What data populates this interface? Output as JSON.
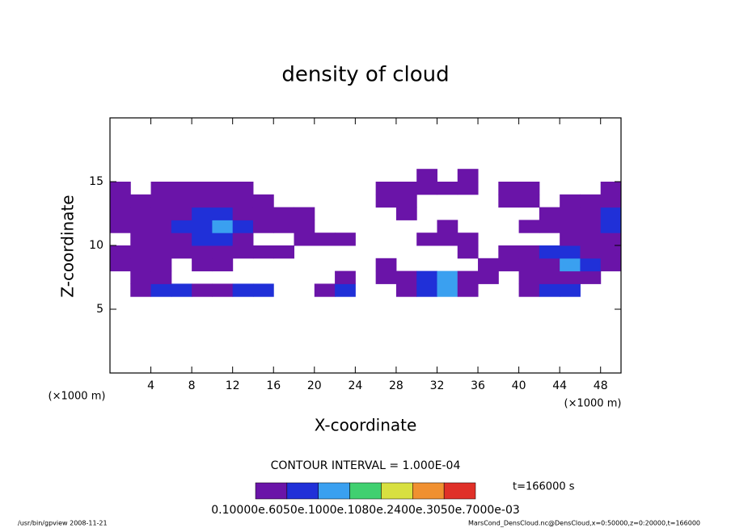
{
  "chart_data": {
    "type": "contour",
    "title": "density of cloud",
    "x_label": "X-coordinate",
    "y_label": "Z-coordinate",
    "x_unit": "(×1000 m)",
    "y_unit": "(×1000 m)",
    "xlim": [
      0,
      50
    ],
    "xticks": [
      4,
      8,
      12,
      16,
      20,
      24,
      28,
      32,
      36,
      40,
      44,
      48
    ],
    "ylim": [
      0,
      20
    ],
    "yticks": [
      5,
      10,
      15
    ],
    "x": [
      1,
      3,
      5,
      7,
      9,
      11,
      13,
      15,
      17,
      19,
      21,
      23,
      25,
      27,
      29,
      31,
      33,
      35,
      37,
      39,
      41,
      43,
      45,
      47,
      49
    ],
    "y": [
      6.5,
      7.5,
      8.5,
      9.5,
      10.5,
      11.5,
      12.5,
      13.5,
      14.5,
      15.5
    ],
    "z": [
      [
        null,
        5e-05,
        0.00015,
        0.00015,
        5e-05,
        5e-05,
        0.00015,
        0.00015,
        null,
        null,
        5e-05,
        0.00015,
        null,
        null,
        5e-05,
        0.00015,
        0.00025,
        5e-05,
        null,
        null,
        5e-05,
        0.00015,
        0.00015,
        null,
        null
      ],
      [
        null,
        5e-05,
        5e-05,
        null,
        null,
        null,
        null,
        null,
        null,
        null,
        null,
        5e-05,
        null,
        5e-05,
        5e-05,
        0.00015,
        0.00025,
        5e-05,
        5e-05,
        null,
        5e-05,
        5e-05,
        5e-05,
        5e-05,
        null
      ],
      [
        5e-05,
        5e-05,
        5e-05,
        null,
        5e-05,
        5e-05,
        null,
        null,
        null,
        null,
        null,
        null,
        null,
        5e-05,
        null,
        null,
        null,
        null,
        5e-05,
        5e-05,
        5e-05,
        5e-05,
        0.00025,
        0.00015,
        5e-05
      ],
      [
        5e-05,
        5e-05,
        5e-05,
        5e-05,
        5e-05,
        5e-05,
        5e-05,
        5e-05,
        5e-05,
        null,
        null,
        null,
        null,
        null,
        null,
        null,
        null,
        5e-05,
        null,
        5e-05,
        5e-05,
        0.00015,
        0.00015,
        5e-05,
        5e-05
      ],
      [
        null,
        5e-05,
        5e-05,
        5e-05,
        0.00015,
        0.00015,
        5e-05,
        null,
        null,
        5e-05,
        5e-05,
        5e-05,
        null,
        null,
        null,
        5e-05,
        5e-05,
        5e-05,
        null,
        null,
        null,
        null,
        5e-05,
        5e-05,
        5e-05
      ],
      [
        5e-05,
        5e-05,
        5e-05,
        0.00015,
        0.00015,
        0.00025,
        0.00015,
        5e-05,
        5e-05,
        5e-05,
        null,
        null,
        null,
        null,
        null,
        null,
        5e-05,
        null,
        null,
        null,
        5e-05,
        5e-05,
        5e-05,
        5e-05,
        0.00015
      ],
      [
        5e-05,
        5e-05,
        5e-05,
        5e-05,
        0.00015,
        0.00015,
        5e-05,
        5e-05,
        5e-05,
        5e-05,
        null,
        null,
        null,
        null,
        5e-05,
        null,
        null,
        null,
        null,
        null,
        null,
        5e-05,
        5e-05,
        5e-05,
        0.00015
      ],
      [
        5e-05,
        5e-05,
        5e-05,
        5e-05,
        5e-05,
        5e-05,
        5e-05,
        5e-05,
        null,
        null,
        null,
        null,
        null,
        5e-05,
        5e-05,
        null,
        null,
        null,
        null,
        5e-05,
        5e-05,
        null,
        5e-05,
        5e-05,
        5e-05
      ],
      [
        5e-05,
        null,
        5e-05,
        5e-05,
        5e-05,
        5e-05,
        5e-05,
        null,
        null,
        null,
        null,
        null,
        null,
        5e-05,
        5e-05,
        5e-05,
        5e-05,
        5e-05,
        null,
        5e-05,
        5e-05,
        null,
        null,
        null,
        5e-05
      ],
      [
        null,
        null,
        null,
        null,
        null,
        null,
        null,
        null,
        null,
        null,
        null,
        null,
        null,
        null,
        null,
        5e-05,
        null,
        5e-05,
        null,
        null,
        null,
        null,
        null,
        null,
        null
      ]
    ],
    "levels": [
      0,
      0.0001,
      0.0002,
      0.0003,
      0.0004,
      0.0005,
      0.0006,
      0.0007
    ],
    "colors": [
      "#6a14a8",
      "#2030d8",
      "#3aa0f0",
      "#40d070",
      "#d8e040",
      "#f09030",
      "#e03028"
    ],
    "contour_interval": "CONTOUR INTERVAL = 1.000E-04",
    "time_label": "t=166000 s",
    "colorbar_label": "0.10000e.6050e.1000e.1080e.2400e.3050e.7000e-03",
    "footer_left": "/usr/bin/gpview   2008-11-21",
    "footer_right": "MarsCond_DensCloud.nc@DensCloud,x=0:50000,z=0:20000,t=166000"
  }
}
